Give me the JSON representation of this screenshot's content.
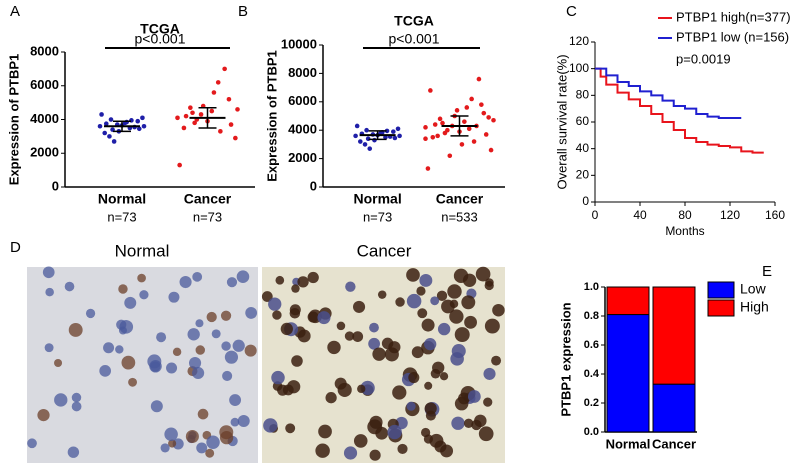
{
  "panel_labels": [
    "A",
    "B",
    "C",
    "D",
    "E"
  ],
  "chart_data": [
    {
      "type": "dot",
      "title": "TCGA",
      "annotation": "p<0.001",
      "ylabel": "Expression of PTBP1",
      "categories": [
        "Normal",
        "Cancer"
      ],
      "sublabels": [
        "n=73",
        "n=73"
      ],
      "colors": [
        "#1f1fa8",
        "#e31a1c"
      ],
      "points": [
        [
          3600,
          3400,
          3800,
          3900,
          3200,
          3700,
          3500,
          4100,
          3000,
          3650,
          3550,
          4300,
          2700,
          3850,
          3450,
          3750,
          3300,
          3950,
          3600,
          4000
        ],
        [
          4100,
          3800,
          4500,
          5200,
          3500,
          4300,
          6200,
          2900,
          4700,
          3900,
          7000,
          1300,
          4000,
          5600,
          3700,
          4200,
          4800,
          3300,
          4600,
          4400
        ]
      ],
      "means": [
        3600,
        4100
      ],
      "sds": [
        300,
        600
      ],
      "ylim": [
        0,
        8000
      ],
      "yticks": [
        0,
        2000,
        4000,
        6000,
        8000
      ]
    },
    {
      "type": "dot",
      "title": "TCGA",
      "annotation": "p<0.001",
      "ylabel": "Expression of PTBP1",
      "categories": [
        "Normal",
        "Cancer"
      ],
      "sublabels": [
        "n=73",
        "n=533"
      ],
      "colors": [
        "#1f1fa8",
        "#e31a1c"
      ],
      "points": [
        [
          3600,
          3400,
          3800,
          3900,
          3200,
          3700,
          3500,
          4100,
          3000,
          3650,
          3550,
          4300,
          2700,
          3850,
          3450,
          3750,
          3300,
          3950,
          3600,
          4000
        ],
        [
          4200,
          3800,
          4600,
          5200,
          3500,
          4300,
          6200,
          2600,
          4800,
          3900,
          7600,
          1300,
          4000,
          5600,
          3700,
          4400,
          5000,
          3200,
          4700,
          4500,
          3000,
          5800,
          6800,
          2200,
          4100,
          4900,
          3600,
          5400,
          4300,
          3400
        ]
      ],
      "means": [
        3650,
        4300
      ],
      "sds": [
        300,
        700
      ],
      "ylim": [
        0,
        10000
      ],
      "yticks": [
        0,
        2000,
        4000,
        6000,
        8000,
        10000
      ]
    },
    {
      "type": "survival",
      "ylabel": "Overall survival rate(%)",
      "xlabel": "Months",
      "annotation": "p=0.0019",
      "xlim": [
        0,
        160
      ],
      "xticks": [
        0,
        40,
        80,
        120,
        160
      ],
      "ylim": [
        0,
        120
      ],
      "yticks": [
        0,
        20,
        40,
        60,
        80,
        100,
        120
      ],
      "series": [
        {
          "name": "PTBP1 high(n=377)",
          "color": "#e8141c",
          "x": [
            0,
            5,
            10,
            20,
            30,
            40,
            50,
            60,
            70,
            80,
            90,
            100,
            110,
            120,
            130,
            140,
            150
          ],
          "values": [
            100,
            94,
            88,
            82,
            77,
            72,
            66,
            60,
            54,
            48,
            45,
            43,
            42,
            41,
            38,
            37,
            37
          ]
        },
        {
          "name": "PTBP1 low (n=156)",
          "color": "#2020d0",
          "x": [
            0,
            10,
            20,
            30,
            40,
            50,
            60,
            70,
            80,
            90,
            100,
            110,
            120,
            130
          ],
          "values": [
            100,
            95,
            90,
            87,
            83,
            80,
            76,
            72,
            70,
            66,
            64,
            63,
            63,
            63
          ]
        }
      ]
    },
    {
      "type": "stacked-bar",
      "ylabel": "PTBP1 expression",
      "categories": [
        "Normal",
        "Cancer"
      ],
      "series": [
        {
          "name": "Low",
          "color": "#0000ff",
          "values": [
            0.81,
            0.33
          ]
        },
        {
          "name": "High",
          "color": "#ff0000",
          "values": [
            0.19,
            0.67
          ]
        }
      ],
      "ylim": [
        0,
        1
      ],
      "yticks": [
        {
          "value": 0,
          "label": "0.0"
        },
        0.2,
        0.4,
        0.6,
        0.8,
        {
          "value": 1,
          "label": "1.0"
        }
      ]
    }
  ],
  "images": {
    "titles": [
      "Normal",
      "Cancer"
    ]
  }
}
